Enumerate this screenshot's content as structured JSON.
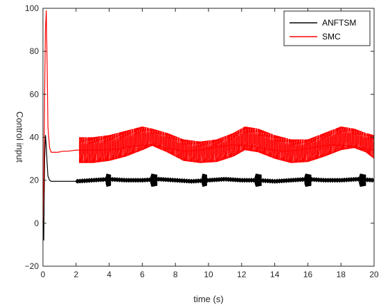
{
  "chart_data": {
    "type": "line",
    "xlabel": "time (s)",
    "ylabel": "Control input",
    "xlim": [
      0,
      20
    ],
    "ylim": [
      -20,
      100
    ],
    "xticks": [
      0,
      2,
      4,
      6,
      8,
      10,
      12,
      14,
      16,
      18,
      20
    ],
    "yticks": [
      -20,
      0,
      20,
      40,
      60,
      80,
      100
    ],
    "grid": false,
    "legend_position": "top-right",
    "series": [
      {
        "name": "ANFTSM",
        "color": "#000000",
        "x": [
          0,
          0.05,
          0.1,
          0.15,
          0.2,
          0.25,
          0.3,
          0.4,
          0.5,
          0.7,
          1.0,
          2.0,
          3.0,
          4.0,
          5.0,
          6.0,
          7.0,
          8.0,
          9.0,
          10.0,
          11.0,
          12.0,
          13.0,
          14.0,
          15.0,
          16.0,
          17.0,
          18.0,
          19.0,
          20.0
        ],
        "y": [
          5,
          -8,
          30,
          41,
          36,
          28,
          22,
          20,
          19.5,
          19.5,
          19.5,
          19.5,
          20,
          20.5,
          20,
          20,
          20.5,
          20,
          19.5,
          20,
          20.5,
          20,
          20,
          19.5,
          20,
          20.5,
          20,
          20,
          20.5,
          20
        ]
      },
      {
        "name": "SMC",
        "color": "#ff0000",
        "x": [
          0,
          0.05,
          0.1,
          0.15,
          0.2,
          0.25,
          0.3,
          0.4,
          0.5,
          0.7,
          0.9,
          1.2,
          1.5,
          2.0,
          2.5,
          3.5,
          4.5,
          5.5,
          6.5,
          7.5,
          8.5,
          9.5,
          10.5,
          11.5,
          12.5,
          13.5,
          14.5,
          15.5,
          16.5,
          17.5,
          18.5,
          19.5,
          20.0
        ],
        "y": [
          0,
          20,
          60,
          90,
          99,
          75,
          45,
          35,
          33,
          33,
          33,
          33.5,
          33.5,
          34,
          34,
          34,
          34.5,
          36,
          36.5,
          35,
          33.5,
          34,
          35.5,
          36.5,
          36,
          34.5,
          33.5,
          34,
          35.5,
          36.5,
          36,
          34.5,
          34
        ]
      }
    ],
    "oscillation_bands": [
      {
        "series": "SMC",
        "x": [
          2.2,
          3.0,
          4.0,
          5.0,
          6.0,
          6.6,
          7.5,
          8.5,
          9.5,
          10.5,
          11.5,
          12.2,
          13.0,
          14.0,
          15.0,
          16.0,
          17.0,
          18.0,
          18.8,
          19.5,
          20.0
        ],
        "low": [
          28,
          28,
          29,
          31,
          34,
          36,
          33,
          29,
          28,
          28.5,
          31,
          34,
          33,
          30,
          28,
          28.5,
          31,
          34,
          35,
          33,
          30
        ],
        "high": [
          40,
          40,
          41,
          43,
          45,
          44,
          42,
          39,
          38,
          39,
          42,
          45,
          44,
          41,
          39,
          39,
          42,
          45,
          44,
          42,
          41
        ]
      },
      {
        "series": "ANFTSM",
        "x": [
          3.8,
          4.1,
          6.5,
          6.9,
          9.6,
          9.9,
          12.8,
          13.2,
          15.8,
          16.2,
          19.1,
          19.5
        ],
        "low": [
          17,
          17,
          17,
          17,
          17,
          17,
          17,
          17,
          17,
          17,
          17,
          17
        ],
        "high": [
          23,
          23,
          23,
          23,
          23,
          23,
          23,
          23,
          23,
          23,
          23,
          23
        ]
      }
    ]
  }
}
